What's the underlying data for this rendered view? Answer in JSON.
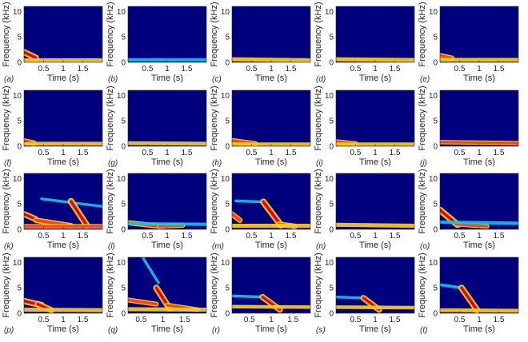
{
  "colors": {
    "background": "#00007f",
    "band_cold": "#10c8e8",
    "band_warm": "#ffd21e",
    "band_hot": "#ff4010",
    "band_core": "#b40000"
  },
  "chart_data": [
    {
      "type": "heatmap",
      "label": "(a)",
      "xlabel": "Time (s)",
      "ylabel": "Frequency (kHz)",
      "xticks": [
        "0.5",
        "1",
        "1.5"
      ],
      "yticks": [
        "0",
        "5",
        "10"
      ],
      "xlim": [
        0,
        2
      ],
      "ylim": [
        0,
        11
      ],
      "bands": [
        {
          "t0": 0,
          "t1": 0.3,
          "f0": 2.0,
          "f1": 0.9,
          "intensity": 0.85
        },
        {
          "t0": 0,
          "t1": 2,
          "f0": 0.4,
          "f1": 0.4,
          "intensity": 0.45
        }
      ]
    },
    {
      "type": "heatmap",
      "label": "(b)",
      "xlabel": "Time (s)",
      "ylabel": "Frequency (kHz)",
      "xticks": [
        "0.5",
        "1",
        "1.5"
      ],
      "yticks": [
        "0",
        "5",
        "10"
      ],
      "xlim": [
        0,
        2
      ],
      "ylim": [
        0,
        11
      ],
      "bands": [
        {
          "t0": 0,
          "t1": 2,
          "f0": 0.5,
          "f1": 0.5,
          "intensity": 0.3
        }
      ]
    },
    {
      "type": "heatmap",
      "label": "(c)",
      "xlabel": "Time (s)",
      "ylabel": "Frequency (kHz)",
      "xticks": [
        "0.5",
        "1",
        "1.5"
      ],
      "yticks": [
        "0",
        "5",
        "10"
      ],
      "xlim": [
        0,
        2
      ],
      "ylim": [
        0,
        11
      ],
      "bands": [
        {
          "t0": 0,
          "t1": 2,
          "f0": 0.6,
          "f1": 0.4,
          "intensity": 0.45
        }
      ]
    },
    {
      "type": "heatmap",
      "label": "(d)",
      "xlabel": "Time (s)",
      "ylabel": "Frequency (kHz)",
      "xticks": [
        "0.5",
        "1",
        "1.5"
      ],
      "yticks": [
        "0",
        "5",
        "10"
      ],
      "xlim": [
        0,
        2
      ],
      "ylim": [
        0,
        11
      ],
      "bands": [
        {
          "t0": 0,
          "t1": 2,
          "f0": 0.6,
          "f1": 0.45,
          "intensity": 0.45
        }
      ]
    },
    {
      "type": "heatmap",
      "label": "(e)",
      "xlabel": "Time (s)",
      "ylabel": "Frequency (kHz)",
      "xticks": [
        "0.5",
        "1",
        "1.5"
      ],
      "yticks": [
        "0",
        "5",
        "10"
      ],
      "xlim": [
        0,
        2
      ],
      "ylim": [
        0,
        11
      ],
      "bands": [
        {
          "t0": 0,
          "t1": 0.3,
          "f0": 1.3,
          "f1": 0.8,
          "intensity": 0.7
        },
        {
          "t0": 0,
          "t1": 2,
          "f0": 0.5,
          "f1": 0.5,
          "intensity": 0.4
        }
      ]
    },
    {
      "type": "heatmap",
      "label": "(f)",
      "xlabel": "Time (s)",
      "ylabel": "Frequency (kHz)",
      "xticks": [
        "0.5",
        "1",
        "1.5"
      ],
      "yticks": [
        "0",
        "5",
        "10"
      ],
      "xlim": [
        0,
        2
      ],
      "ylim": [
        0,
        11
      ],
      "bands": [
        {
          "t0": 0,
          "t1": 0.25,
          "f0": 1.0,
          "f1": 0.6,
          "intensity": 0.75
        },
        {
          "t0": 0,
          "t1": 2,
          "f0": 0.5,
          "f1": 0.5,
          "intensity": 0.4
        }
      ]
    },
    {
      "type": "heatmap",
      "label": "(g)",
      "xlabel": "Time (s)",
      "ylabel": "Frequency (kHz)",
      "xticks": [
        "0.5",
        "1",
        "1.5"
      ],
      "yticks": [
        "0",
        "5",
        "10"
      ],
      "xlim": [
        0,
        2
      ],
      "ylim": [
        0,
        11
      ],
      "bands": [
        {
          "t0": 0,
          "t1": 2,
          "f0": 0.6,
          "f1": 0.5,
          "intensity": 0.4
        }
      ]
    },
    {
      "type": "heatmap",
      "label": "(h)",
      "xlabel": "Time (s)",
      "ylabel": "Frequency (kHz)",
      "xticks": [
        "0.5",
        "1",
        "1.5"
      ],
      "yticks": [
        "0",
        "5",
        "10"
      ],
      "xlim": [
        0,
        2
      ],
      "ylim": [
        0,
        11
      ],
      "bands": [
        {
          "t0": 0,
          "t1": 0.6,
          "f0": 1.1,
          "f1": 0.5,
          "intensity": 0.65
        },
        {
          "t0": 0,
          "t1": 2,
          "f0": 0.4,
          "f1": 0.4,
          "intensity": 0.35
        }
      ]
    },
    {
      "type": "heatmap",
      "label": "(i)",
      "xlabel": "Time (s)",
      "ylabel": "Frequency (kHz)",
      "xticks": [
        "0.5",
        "1",
        "1.5"
      ],
      "yticks": [
        "0",
        "5",
        "10"
      ],
      "xlim": [
        0,
        2
      ],
      "ylim": [
        0,
        11
      ],
      "bands": [
        {
          "t0": 0,
          "t1": 0.5,
          "f0": 0.9,
          "f1": 0.5,
          "intensity": 0.6
        },
        {
          "t0": 0,
          "t1": 2,
          "f0": 0.4,
          "f1": 0.4,
          "intensity": 0.35
        }
      ]
    },
    {
      "type": "heatmap",
      "label": "(j)",
      "xlabel": "Time (s)",
      "ylabel": "Frequency (kHz)",
      "xticks": [
        "0.5",
        "1",
        "1.5"
      ],
      "yticks": [
        "0",
        "5",
        "10"
      ],
      "xlim": [
        0,
        2
      ],
      "ylim": [
        0,
        11
      ],
      "bands": [
        {
          "t0": 0,
          "t1": 2,
          "f0": 0.8,
          "f1": 0.6,
          "intensity": 0.5
        }
      ]
    },
    {
      "type": "heatmap",
      "label": "(k)",
      "xlabel": "Time (s)",
      "ylabel": "Frequency (kHz)",
      "xticks": [
        "0.5",
        "1",
        "1.5"
      ],
      "yticks": [
        "0",
        "5",
        "10"
      ],
      "xlim": [
        0,
        2
      ],
      "ylim": [
        0,
        11
      ],
      "bands": [
        {
          "t0": 0,
          "t1": 0.3,
          "f0": 3.0,
          "f1": 2.0,
          "intensity": 0.8
        },
        {
          "t0": 0.45,
          "t1": 2,
          "f0": 6.0,
          "f1": 4.5,
          "intensity": 0.2
        },
        {
          "t0": 1.2,
          "t1": 1.6,
          "f0": 5.5,
          "f1": 0.8,
          "intensity": 0.9
        },
        {
          "t0": 0.3,
          "t1": 1.2,
          "f0": 1.8,
          "f1": 0.7,
          "intensity": 0.7
        },
        {
          "t0": 0,
          "t1": 2,
          "f0": 0.6,
          "f1": 0.6,
          "intensity": 0.5
        }
      ]
    },
    {
      "type": "heatmap",
      "label": "(l)",
      "xlabel": "Time (s)",
      "ylabel": "Frequency (kHz)",
      "xticks": [
        "0.5",
        "1",
        "1.5"
      ],
      "yticks": [
        "0",
        "5",
        "10"
      ],
      "xlim": [
        0,
        2
      ],
      "ylim": [
        0,
        11
      ],
      "bands": [
        {
          "t0": 0,
          "t1": 0.8,
          "f0": 1.3,
          "f1": 0.6,
          "intensity": 0.65
        },
        {
          "t0": 0.8,
          "t1": 1.4,
          "f0": 0.6,
          "f1": 0.8,
          "intensity": 0.6
        },
        {
          "t0": 0,
          "t1": 2,
          "f0": 1.1,
          "f1": 1.0,
          "intensity": 0.3
        }
      ]
    },
    {
      "type": "heatmap",
      "label": "(m)",
      "xlabel": "Time (s)",
      "ylabel": "Frequency (kHz)",
      "xticks": [
        "0.5",
        "1",
        "1.5"
      ],
      "yticks": [
        "0",
        "5",
        "10"
      ],
      "xlim": [
        0,
        2
      ],
      "ylim": [
        0,
        11
      ],
      "bands": [
        {
          "t0": 0,
          "t1": 0.2,
          "f0": 3.0,
          "f1": 1.8,
          "intensity": 0.7
        },
        {
          "t0": 0.1,
          "t1": 0.8,
          "f0": 5.6,
          "f1": 5.4,
          "intensity": 0.2
        },
        {
          "t0": 0.8,
          "t1": 1.25,
          "f0": 5.4,
          "f1": 0.8,
          "intensity": 0.9
        },
        {
          "t0": 1.2,
          "t1": 1.6,
          "f0": 1.0,
          "f1": 0.6,
          "intensity": 0.7
        },
        {
          "t0": 0,
          "t1": 2,
          "f0": 0.7,
          "f1": 0.7,
          "intensity": 0.45
        }
      ]
    },
    {
      "type": "heatmap",
      "label": "(n)",
      "xlabel": "Time (s)",
      "ylabel": "Frequency (kHz)",
      "xticks": [
        "0.5",
        "1",
        "1.5"
      ],
      "yticks": [
        "0",
        "5",
        "10"
      ],
      "xlim": [
        0,
        2
      ],
      "ylim": [
        0,
        11
      ],
      "bands": [
        {
          "t0": 0,
          "t1": 2,
          "f0": 0.9,
          "f1": 0.7,
          "intensity": 0.45
        }
      ]
    },
    {
      "type": "heatmap",
      "label": "(o)",
      "xlabel": "Time (s)",
      "ylabel": "Frequency (kHz)",
      "xticks": [
        "0.5",
        "1",
        "1.5"
      ],
      "yticks": [
        "0",
        "5",
        "10"
      ],
      "xlim": [
        0,
        2
      ],
      "ylim": [
        0,
        11
      ],
      "bands": [
        {
          "t0": 0,
          "t1": 0.45,
          "f0": 3.8,
          "f1": 0.9,
          "intensity": 0.9
        },
        {
          "t0": 0.4,
          "t1": 1.2,
          "f0": 1.0,
          "f1": 0.6,
          "intensity": 0.55
        },
        {
          "t0": 0,
          "t1": 2,
          "f0": 1.4,
          "f1": 1.2,
          "intensity": 0.3
        }
      ]
    },
    {
      "type": "heatmap",
      "label": "(p)",
      "xlabel": "Time (s)",
      "ylabel": "Frequency (kHz)",
      "xticks": [
        "0.5",
        "1",
        "1.5"
      ],
      "yticks": [
        "0",
        "5",
        "10"
      ],
      "xlim": [
        0,
        2
      ],
      "ylim": [
        0,
        11
      ],
      "bands": [
        {
          "t0": 0,
          "t1": 0.45,
          "f0": 2.4,
          "f1": 1.6,
          "intensity": 0.85
        },
        {
          "t0": 0.35,
          "t1": 0.7,
          "f0": 1.8,
          "f1": 0.6,
          "intensity": 0.8
        },
        {
          "t0": 0,
          "t1": 2,
          "f0": 0.7,
          "f1": 0.6,
          "intensity": 0.45
        }
      ]
    },
    {
      "type": "heatmap",
      "label": "(q)",
      "xlabel": "Time (s)",
      "ylabel": "Frequency (kHz)",
      "xticks": [
        "0.5",
        "1",
        "1.5"
      ],
      "yticks": [
        "0",
        "5",
        "10"
      ],
      "xlim": [
        0.2,
        2
      ],
      "ylim": [
        0,
        11
      ],
      "bands": [
        {
          "t0": 0.55,
          "t1": 0.9,
          "f0": 10.8,
          "f1": 6.0,
          "intensity": 0.2
        },
        {
          "t0": 0.85,
          "t1": 1.15,
          "f0": 5.0,
          "f1": 1.0,
          "intensity": 0.85
        },
        {
          "t0": 0.2,
          "t1": 0.85,
          "f0": 2.6,
          "f1": 1.8,
          "intensity": 0.6
        },
        {
          "t0": 1.1,
          "t1": 1.8,
          "f0": 1.6,
          "f1": 0.7,
          "intensity": 0.55
        },
        {
          "t0": 0.2,
          "t1": 2,
          "f0": 0.8,
          "f1": 0.7,
          "intensity": 0.45
        }
      ]
    },
    {
      "type": "heatmap",
      "label": "(r)",
      "xlabel": "Time (s)",
      "ylabel": "Frequency (kHz)",
      "xticks": [
        "0.5",
        "1",
        "1.5"
      ],
      "yticks": [
        "0",
        "5",
        "10"
      ],
      "xlim": [
        0.1,
        1.9
      ],
      "ylim": [
        0,
        11
      ],
      "bands": [
        {
          "t0": 0.1,
          "t1": 0.8,
          "f0": 3.4,
          "f1": 3.2,
          "intensity": 0.2
        },
        {
          "t0": 0.8,
          "t1": 1.2,
          "f0": 3.2,
          "f1": 0.7,
          "intensity": 0.8
        },
        {
          "t0": 0.1,
          "t1": 1.9,
          "f0": 1.3,
          "f1": 1.2,
          "intensity": 0.35
        }
      ]
    },
    {
      "type": "heatmap",
      "label": "(s)",
      "xlabel": "Time (s)",
      "ylabel": "Frequency (kHz)",
      "xticks": [
        "0.5",
        "1",
        "1.5"
      ],
      "yticks": [
        "0",
        "5",
        "10"
      ],
      "xlim": [
        0,
        2
      ],
      "ylim": [
        0,
        11
      ],
      "bands": [
        {
          "t0": 0,
          "t1": 0.7,
          "f0": 3.2,
          "f1": 3.0,
          "intensity": 0.2
        },
        {
          "t0": 0.7,
          "t1": 1.1,
          "f0": 3.0,
          "f1": 0.7,
          "intensity": 0.8
        },
        {
          "t0": 0,
          "t1": 2,
          "f0": 1.2,
          "f1": 1.1,
          "intensity": 0.35
        }
      ]
    },
    {
      "type": "heatmap",
      "label": "(t)",
      "xlabel": "Time (s)",
      "ylabel": "Frequency (kHz)",
      "xticks": [
        "0.5",
        "1",
        "1.5"
      ],
      "yticks": [
        "0",
        "5",
        "10"
      ],
      "xlim": [
        0,
        2
      ],
      "ylim": [
        0,
        11
      ],
      "bands": [
        {
          "t0": 0,
          "t1": 0.55,
          "f0": 5.6,
          "f1": 5.0,
          "intensity": 0.25
        },
        {
          "t0": 0.55,
          "t1": 0.95,
          "f0": 5.0,
          "f1": 0.6,
          "intensity": 0.85
        },
        {
          "t0": 0,
          "t1": 2,
          "f0": 0.6,
          "f1": 0.5,
          "intensity": 0.4
        }
      ]
    }
  ]
}
